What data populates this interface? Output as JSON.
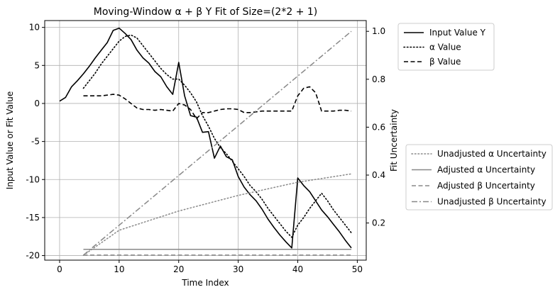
{
  "chart_data": {
    "type": "line",
    "title": "Moving-Window α + β Y Fit of Size=(2*2 + 1)",
    "xlabel": "Time Index",
    "ylabel": "Input Value or Fit Value",
    "y2label": "Fit Uncertainty",
    "xlim": [
      -2.5,
      51.5
    ],
    "ylim": [
      -20.6,
      10.9
    ],
    "y2lim": [
      0.045,
      1.045
    ],
    "grid": true,
    "x_ticks": [
      0,
      10,
      20,
      30,
      40,
      50
    ],
    "y_ticks": [
      10,
      5,
      0,
      -5,
      -10,
      -15,
      -20
    ],
    "y2_ticks": [
      1.0,
      0.8,
      0.6,
      0.4,
      0.2
    ],
    "legend_upper": {
      "placement": "outside-upper-right",
      "entries": [
        "Input Value Y",
        "α Value",
        "β Value"
      ]
    },
    "legend_lower": {
      "placement": "outside-lower-right",
      "entries": [
        "Unadjusted α Uncertainty",
        "Adjusted α Uncertainty",
        "Adjusted β Uncertainty",
        "Unadjusted β Uncertainty"
      ]
    },
    "series": [
      {
        "name": "Input Value Y",
        "axis": "left",
        "style": "solid",
        "color": "#000000",
        "x": [
          0,
          1,
          2,
          3,
          4,
          5,
          6,
          7,
          8,
          9,
          10,
          11,
          12,
          13,
          14,
          15,
          16,
          17,
          18,
          19,
          20,
          21,
          22,
          23,
          24,
          25,
          26,
          27,
          28,
          29,
          30,
          31,
          32,
          33,
          34,
          35,
          36,
          37,
          38,
          39,
          40,
          41,
          42,
          43,
          44,
          45,
          46,
          47,
          48,
          49
        ],
        "y": [
          0.3,
          0.8,
          2.2,
          3.0,
          3.9,
          4.9,
          6.0,
          7.0,
          8.0,
          9.6,
          9.9,
          9.2,
          8.4,
          7.0,
          6.0,
          5.3,
          4.2,
          3.5,
          2.2,
          1.2,
          5.4,
          1.0,
          -1.6,
          -1.8,
          -3.8,
          -3.7,
          -7.2,
          -5.6,
          -7.0,
          -7.4,
          -9.6,
          -11.0,
          -12.0,
          -12.8,
          -13.9,
          -15.2,
          -16.3,
          -17.3,
          -18.2,
          -19.0,
          -9.8,
          -10.8,
          -11.6,
          -12.8,
          -14.0,
          -14.9,
          -15.9,
          -16.9,
          -18.0,
          -19.0
        ]
      },
      {
        "name": "α Value",
        "axis": "left",
        "style": "dotted",
        "color": "#000000",
        "x": [
          4,
          5,
          6,
          7,
          8,
          9,
          10,
          11,
          12,
          13,
          14,
          15,
          16,
          17,
          18,
          19,
          20,
          21,
          22,
          23,
          24,
          25,
          26,
          27,
          28,
          29,
          30,
          31,
          32,
          33,
          34,
          35,
          36,
          37,
          38,
          39,
          40,
          41,
          42,
          43,
          44,
          45,
          46,
          47,
          48,
          49
        ],
        "y": [
          2.0,
          3.0,
          4.0,
          5.2,
          6.2,
          7.2,
          8.2,
          8.8,
          9.0,
          8.6,
          7.6,
          6.6,
          5.6,
          4.6,
          3.8,
          3.2,
          3.2,
          2.4,
          1.4,
          0.2,
          -1.6,
          -3.0,
          -4.6,
          -5.8,
          -6.6,
          -7.6,
          -8.6,
          -9.6,
          -10.8,
          -11.6,
          -12.6,
          -13.8,
          -14.8,
          -15.8,
          -16.8,
          -17.6,
          -16.0,
          -15.0,
          -13.8,
          -12.8,
          -11.8,
          -12.8,
          -14.0,
          -15.0,
          -16.0,
          -17.0
        ]
      },
      {
        "name": "β Value",
        "axis": "left",
        "style": "dashed",
        "color": "#000000",
        "x": [
          4,
          5,
          6,
          7,
          8,
          9,
          10,
          11,
          12,
          13,
          14,
          15,
          16,
          17,
          18,
          19,
          20,
          21,
          22,
          23,
          24,
          25,
          26,
          27,
          28,
          29,
          30,
          31,
          32,
          33,
          34,
          35,
          36,
          37,
          38,
          39,
          40,
          41,
          42,
          43,
          44,
          45,
          46,
          47,
          48,
          49
        ],
        "y": [
          1.0,
          1.0,
          1.0,
          1.0,
          1.1,
          1.2,
          1.1,
          0.6,
          0.0,
          -0.6,
          -0.8,
          -0.8,
          -0.9,
          -0.8,
          -0.9,
          -1.0,
          0.0,
          -0.2,
          -0.8,
          -2.0,
          -1.2,
          -1.2,
          -1.0,
          -0.8,
          -0.7,
          -0.7,
          -0.8,
          -1.2,
          -1.2,
          -1.1,
          -1.0,
          -1.0,
          -1.0,
          -1.0,
          -1.0,
          -1.0,
          1.0,
          2.0,
          2.2,
          1.4,
          -1.0,
          -1.0,
          -1.0,
          -0.9,
          -0.9,
          -1.0
        ]
      },
      {
        "name": "Unadjusted α Uncertainty",
        "axis": "right",
        "style": "dotted",
        "color": "#888888",
        "x": [
          4,
          10,
          20,
          30,
          40,
          49
        ],
        "y": [
          0.065,
          0.17,
          0.25,
          0.315,
          0.37,
          0.405
        ]
      },
      {
        "name": "Adjusted α Uncertainty",
        "axis": "right",
        "style": "solid",
        "color": "#888888",
        "x": [
          4,
          49
        ],
        "y": [
          0.09,
          0.09
        ]
      },
      {
        "name": "Adjusted β Uncertainty",
        "axis": "right",
        "style": "dashed",
        "color": "#888888",
        "x": [
          4,
          49
        ],
        "y": [
          0.066,
          0.066
        ]
      },
      {
        "name": "Unadjusted β Uncertainty",
        "axis": "right",
        "style": "dashdot",
        "color": "#888888",
        "x": [
          4,
          49
        ],
        "y": [
          0.066,
          1.0
        ]
      }
    ]
  }
}
